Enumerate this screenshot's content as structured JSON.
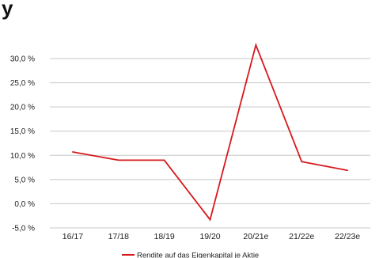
{
  "corner_glyph": "y",
  "chart_data": {
    "type": "line",
    "categories": [
      "16/17",
      "17/18",
      "18/19",
      "19/20",
      "20/21e",
      "21/22e",
      "22/23e"
    ],
    "series": [
      {
        "name": "Rendite auf das Eigenkapital je Aktie",
        "color": "#d7191c",
        "values": [
          10.7,
          9.0,
          9.0,
          -3.3,
          32.8,
          8.7,
          6.9
        ]
      }
    ],
    "y_ticks": [
      -5.0,
      0.0,
      5.0,
      10.0,
      15.0,
      20.0,
      25.0,
      30.0
    ],
    "y_tick_labels": [
      "-5,0 %",
      "0,0 %",
      "5,0 %",
      "10,0 %",
      "15,0 %",
      "20,0 %",
      "25,0 %",
      "30,0 %"
    ],
    "ylim": [
      -5,
      30
    ],
    "grid": true,
    "gridline_color": "#c8c8c8",
    "legend_position": "bottom-center",
    "title": "",
    "xlabel": "",
    "ylabel": ""
  }
}
